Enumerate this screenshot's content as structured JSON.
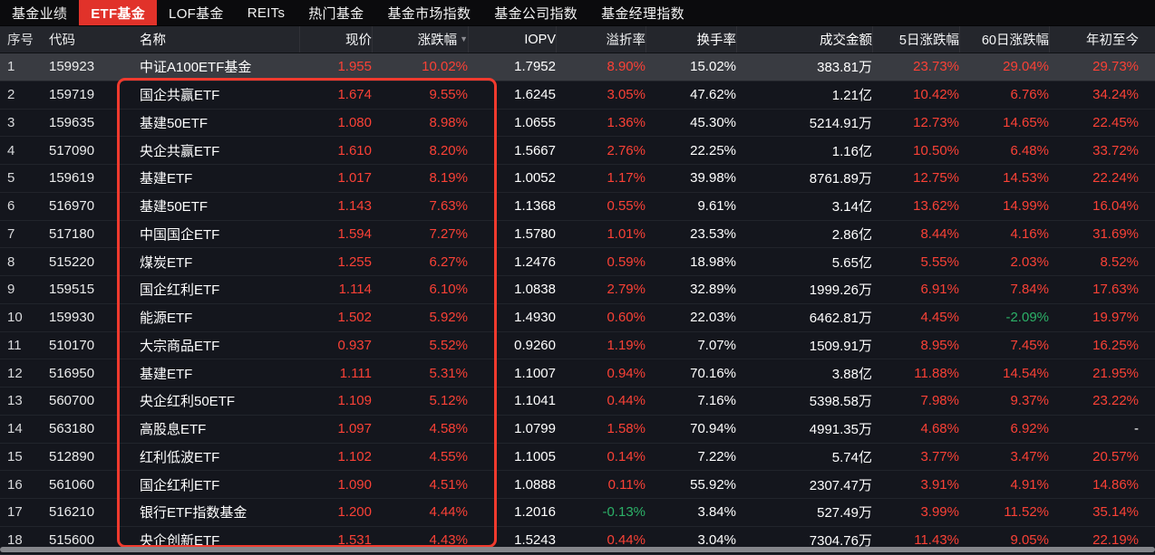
{
  "tab_bar": {
    "tabs": [
      {
        "label": "基金业绩",
        "active": false
      },
      {
        "label": "ETF基金",
        "active": true
      },
      {
        "label": "LOF基金",
        "active": false
      },
      {
        "label": "REITs",
        "active": false
      },
      {
        "label": "热门基金",
        "active": false
      },
      {
        "label": "基金市场指数",
        "active": false
      },
      {
        "label": "基金公司指数",
        "active": false
      },
      {
        "label": "基金经理指数",
        "active": false
      }
    ]
  },
  "table": {
    "columns": [
      {
        "key": "seq",
        "label": "序号"
      },
      {
        "key": "code",
        "label": "代码"
      },
      {
        "key": "name",
        "label": "名称"
      },
      {
        "key": "price",
        "label": "现价"
      },
      {
        "key": "chg",
        "label": "涨跌幅",
        "sort_indicator": "desc"
      },
      {
        "key": "iopv",
        "label": "IOPV"
      },
      {
        "key": "premium",
        "label": "溢折率"
      },
      {
        "key": "turnover",
        "label": "换手率"
      },
      {
        "key": "amount",
        "label": "成交金额"
      },
      {
        "key": "d5",
        "label": "5日涨跌幅"
      },
      {
        "key": "d60",
        "label": "60日涨跌幅"
      },
      {
        "key": "ytd",
        "label": "年初至今"
      }
    ],
    "color_rule_columns": [
      "price",
      "chg",
      "premium",
      "d5",
      "d60",
      "ytd"
    ],
    "highlighted_row": 0,
    "rows": [
      {
        "seq": "1",
        "code": "159923",
        "name": "中证A100ETF基金",
        "price": "1.955",
        "chg": "10.02%",
        "iopv": "1.7952",
        "premium": "8.90%",
        "turnover": "15.02%",
        "amount": "383.81万",
        "d5": "23.73%",
        "d60": "29.04%",
        "ytd": "29.73%"
      },
      {
        "seq": "2",
        "code": "159719",
        "name": "国企共赢ETF",
        "price": "1.674",
        "chg": "9.55%",
        "iopv": "1.6245",
        "premium": "3.05%",
        "turnover": "47.62%",
        "amount": "1.21亿",
        "d5": "10.42%",
        "d60": "6.76%",
        "ytd": "34.24%"
      },
      {
        "seq": "3",
        "code": "159635",
        "name": "基建50ETF",
        "price": "1.080",
        "chg": "8.98%",
        "iopv": "1.0655",
        "premium": "1.36%",
        "turnover": "45.30%",
        "amount": "5214.91万",
        "d5": "12.73%",
        "d60": "14.65%",
        "ytd": "22.45%"
      },
      {
        "seq": "4",
        "code": "517090",
        "name": "央企共赢ETF",
        "price": "1.610",
        "chg": "8.20%",
        "iopv": "1.5667",
        "premium": "2.76%",
        "turnover": "22.25%",
        "amount": "1.16亿",
        "d5": "10.50%",
        "d60": "6.48%",
        "ytd": "33.72%"
      },
      {
        "seq": "5",
        "code": "159619",
        "name": "基建ETF",
        "price": "1.017",
        "chg": "8.19%",
        "iopv": "1.0052",
        "premium": "1.17%",
        "turnover": "39.98%",
        "amount": "8761.89万",
        "d5": "12.75%",
        "d60": "14.53%",
        "ytd": "22.24%"
      },
      {
        "seq": "6",
        "code": "516970",
        "name": "基建50ETF",
        "price": "1.143",
        "chg": "7.63%",
        "iopv": "1.1368",
        "premium": "0.55%",
        "turnover": "9.61%",
        "amount": "3.14亿",
        "d5": "13.62%",
        "d60": "14.99%",
        "ytd": "16.04%"
      },
      {
        "seq": "7",
        "code": "517180",
        "name": "中国国企ETF",
        "price": "1.594",
        "chg": "7.27%",
        "iopv": "1.5780",
        "premium": "1.01%",
        "turnover": "23.53%",
        "amount": "2.86亿",
        "d5": "8.44%",
        "d60": "4.16%",
        "ytd": "31.69%"
      },
      {
        "seq": "8",
        "code": "515220",
        "name": "煤炭ETF",
        "price": "1.255",
        "chg": "6.27%",
        "iopv": "1.2476",
        "premium": "0.59%",
        "turnover": "18.98%",
        "amount": "5.65亿",
        "d5": "5.55%",
        "d60": "2.03%",
        "ytd": "8.52%"
      },
      {
        "seq": "9",
        "code": "159515",
        "name": "国企红利ETF",
        "price": "1.114",
        "chg": "6.10%",
        "iopv": "1.0838",
        "premium": "2.79%",
        "turnover": "32.89%",
        "amount": "1999.26万",
        "d5": "6.91%",
        "d60": "7.84%",
        "ytd": "17.63%"
      },
      {
        "seq": "10",
        "code": "159930",
        "name": "能源ETF",
        "price": "1.502",
        "chg": "5.92%",
        "iopv": "1.4930",
        "premium": "0.60%",
        "turnover": "22.03%",
        "amount": "6462.81万",
        "d5": "4.45%",
        "d60": "-2.09%",
        "ytd": "19.97%"
      },
      {
        "seq": "11",
        "code": "510170",
        "name": "大宗商品ETF",
        "price": "0.937",
        "chg": "5.52%",
        "iopv": "0.9260",
        "premium": "1.19%",
        "turnover": "7.07%",
        "amount": "1509.91万",
        "d5": "8.95%",
        "d60": "7.45%",
        "ytd": "16.25%"
      },
      {
        "seq": "12",
        "code": "516950",
        "name": "基建ETF",
        "price": "1.111",
        "chg": "5.31%",
        "iopv": "1.1007",
        "premium": "0.94%",
        "turnover": "70.16%",
        "amount": "3.88亿",
        "d5": "11.88%",
        "d60": "14.54%",
        "ytd": "21.95%"
      },
      {
        "seq": "13",
        "code": "560700",
        "name": "央企红利50ETF",
        "price": "1.109",
        "chg": "5.12%",
        "iopv": "1.1041",
        "premium": "0.44%",
        "turnover": "7.16%",
        "amount": "5398.58万",
        "d5": "7.98%",
        "d60": "9.37%",
        "ytd": "23.22%"
      },
      {
        "seq": "14",
        "code": "563180",
        "name": "高股息ETF",
        "price": "1.097",
        "chg": "4.58%",
        "iopv": "1.0799",
        "premium": "1.58%",
        "turnover": "70.94%",
        "amount": "4991.35万",
        "d5": "4.68%",
        "d60": "6.92%",
        "ytd": "-"
      },
      {
        "seq": "15",
        "code": "512890",
        "name": "红利低波ETF",
        "price": "1.102",
        "chg": "4.55%",
        "iopv": "1.1005",
        "premium": "0.14%",
        "turnover": "7.22%",
        "amount": "5.74亿",
        "d5": "3.77%",
        "d60": "3.47%",
        "ytd": "20.57%"
      },
      {
        "seq": "16",
        "code": "561060",
        "name": "国企红利ETF",
        "price": "1.090",
        "chg": "4.51%",
        "iopv": "1.0888",
        "premium": "0.11%",
        "turnover": "55.92%",
        "amount": "2307.47万",
        "d5": "3.91%",
        "d60": "4.91%",
        "ytd": "14.86%"
      },
      {
        "seq": "17",
        "code": "516210",
        "name": "银行ETF指数基金",
        "price": "1.200",
        "chg": "4.44%",
        "iopv": "1.2016",
        "premium": "-0.13%",
        "turnover": "3.84%",
        "amount": "527.49万",
        "d5": "3.99%",
        "d60": "11.52%",
        "ytd": "35.14%"
      },
      {
        "seq": "18",
        "code": "515600",
        "name": "央企创新ETF",
        "price": "1.531",
        "chg": "4.43%",
        "iopv": "1.5243",
        "premium": "0.44%",
        "turnover": "3.04%",
        "amount": "7304.76万",
        "d5": "11.43%",
        "d60": "9.05%",
        "ytd": "22.19%"
      }
    ]
  },
  "annotation": {
    "type": "rectangle",
    "color": "#f13a2e"
  },
  "colors": {
    "up": "#fa4136",
    "down": "#2cb168",
    "tab_active_bg": "#e1322a"
  },
  "icons": {
    "sort_desc": "▼"
  },
  "scrollbar": {
    "orientation": "horizontal"
  }
}
